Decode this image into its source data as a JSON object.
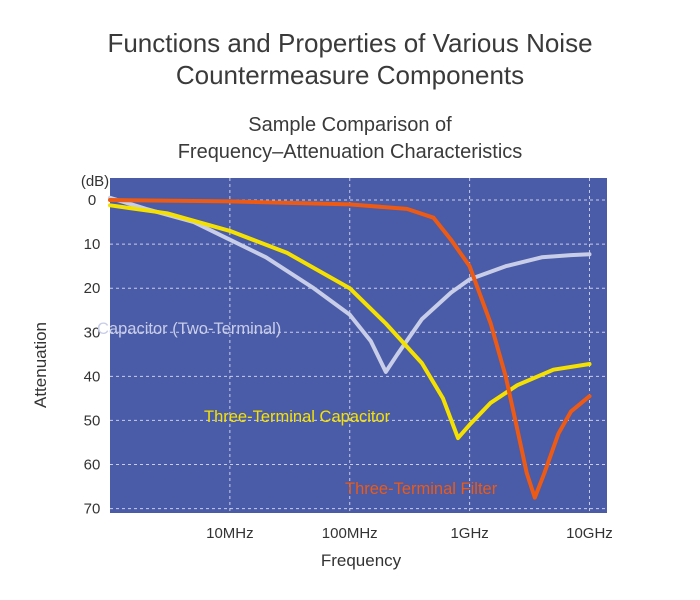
{
  "page": {
    "title_line1": "Functions and Properties of Various Noise",
    "title_line2": "Countermeasure Components"
  },
  "chart_data": {
    "type": "line",
    "title_line1": "Sample Comparison of",
    "title_line2": "Frequency–Attenuation Characteristics",
    "xlabel": "Frequency",
    "ylabel": "Attenuation",
    "y_unit": "(dB)",
    "x_scale": "log",
    "x_ticks": [
      {
        "value": 10,
        "label": "10MHz"
      },
      {
        "value": 100,
        "label": "100MHz"
      },
      {
        "value": 1000,
        "label": "1GHz"
      },
      {
        "value": 10000,
        "label": "10GHz"
      }
    ],
    "xlim": [
      1,
      14000
    ],
    "y_ticks": [
      0,
      10,
      20,
      30,
      40,
      50,
      60,
      70
    ],
    "ylim": [
      -5,
      71
    ],
    "y_inverted": true,
    "grid": true,
    "background": "#4a5ba8",
    "series": [
      {
        "name": "Capacitor (Two-Terminal)",
        "color": "#c8cde8",
        "points": [
          [
            1,
            -0.5
          ],
          [
            2,
            2
          ],
          [
            5,
            5
          ],
          [
            10,
            9
          ],
          [
            20,
            13
          ],
          [
            50,
            20
          ],
          [
            100,
            26
          ],
          [
            150,
            32
          ],
          [
            200,
            39
          ],
          [
            250,
            35
          ],
          [
            400,
            27
          ],
          [
            700,
            21
          ],
          [
            1000,
            18
          ],
          [
            2000,
            15
          ],
          [
            4000,
            13
          ],
          [
            7000,
            12.5
          ],
          [
            10000,
            12.3
          ]
        ]
      },
      {
        "name": "Three-Terminal Capacitor",
        "color": "#f5e100",
        "points": [
          [
            1,
            1.2
          ],
          [
            3,
            3
          ],
          [
            10,
            7
          ],
          [
            30,
            12
          ],
          [
            100,
            20
          ],
          [
            200,
            28
          ],
          [
            400,
            37
          ],
          [
            600,
            45
          ],
          [
            800,
            54
          ],
          [
            1000,
            51
          ],
          [
            1500,
            46
          ],
          [
            2500,
            42
          ],
          [
            5000,
            38.5
          ],
          [
            10000,
            37.2
          ]
        ]
      },
      {
        "name": "Three-Terminal Filter",
        "color": "#ec5a14",
        "points": [
          [
            1,
            0
          ],
          [
            10,
            0.3
          ],
          [
            100,
            1
          ],
          [
            300,
            2
          ],
          [
            500,
            4
          ],
          [
            700,
            9
          ],
          [
            1000,
            15
          ],
          [
            1500,
            28
          ],
          [
            2000,
            40
          ],
          [
            2500,
            52
          ],
          [
            3000,
            62
          ],
          [
            3500,
            67.5
          ],
          [
            4200,
            62
          ],
          [
            5500,
            53
          ],
          [
            7000,
            48
          ],
          [
            10000,
            44.5
          ]
        ]
      }
    ]
  }
}
